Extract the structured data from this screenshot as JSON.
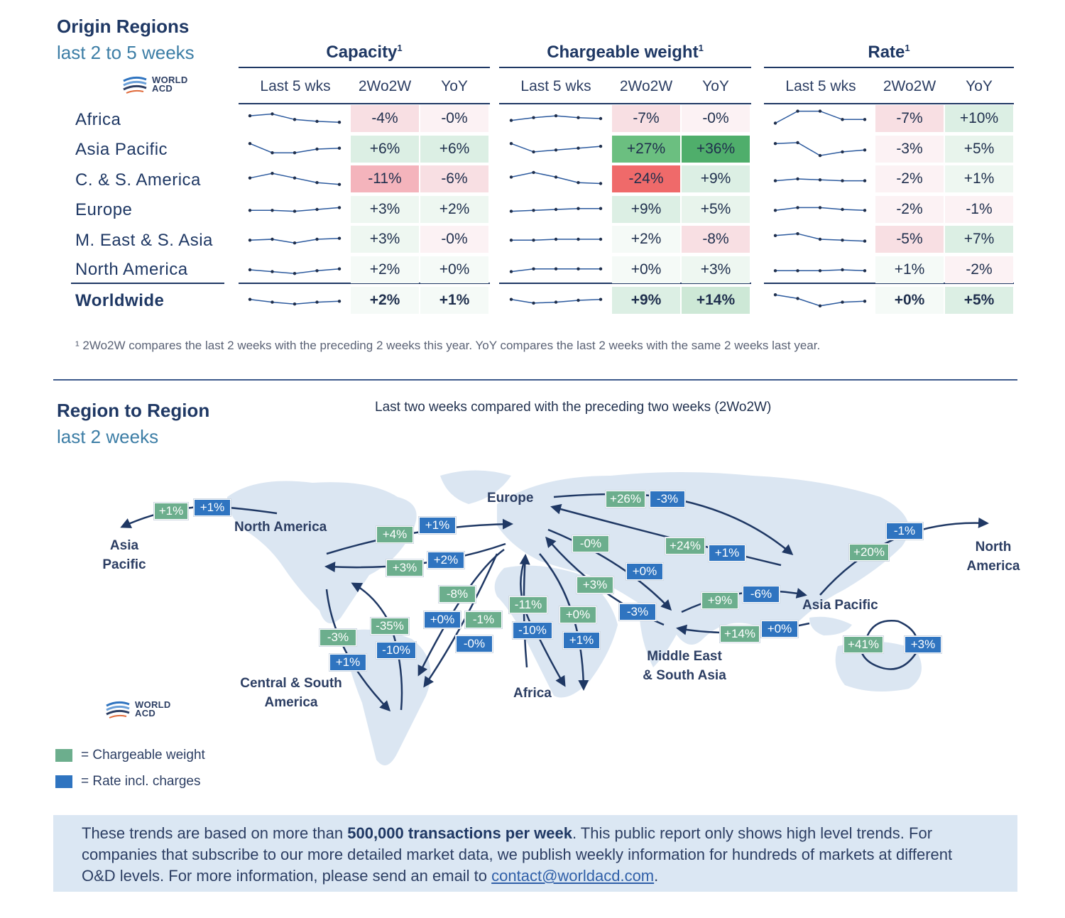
{
  "origin": {
    "title": "Origin Regions",
    "subtitle": "last 2 to 5 weeks",
    "logo": {
      "line1": "WORLD",
      "line2": "ACD"
    },
    "groups": [
      {
        "title": "Capacity",
        "sup": "1"
      },
      {
        "title": "Chargeable weight",
        "sup": "1"
      },
      {
        "title": "Rate",
        "sup": "1"
      }
    ],
    "col_heads": [
      "Last 5 wks",
      "2Wo2W",
      "YoY"
    ],
    "rows": [
      {
        "label": "Africa",
        "spark": [
          [
            0.35,
            0.25,
            0.55,
            0.65,
            0.7
          ],
          [
            0.6,
            0.45,
            0.35,
            0.45,
            0.5
          ],
          [
            0.75,
            0.1,
            0.1,
            0.55,
            0.55
          ]
        ],
        "cap": [
          "-4%",
          "-0%"
        ],
        "cw": [
          "-7%",
          "-0%"
        ],
        "rate": [
          "-7%",
          "+10%"
        ],
        "colors": [
          "#f8dfe3",
          "#fcf2f4",
          "#f8dfe3",
          "#fcf2f4",
          "#f8dfe3",
          "#dcefe4"
        ]
      },
      {
        "label": "Asia Pacific",
        "spark": [
          [
            0.2,
            0.7,
            0.7,
            0.5,
            0.45
          ],
          [
            0.2,
            0.65,
            0.55,
            0.45,
            0.35
          ],
          [
            0.2,
            0.15,
            0.85,
            0.65,
            0.55
          ]
        ],
        "cap": [
          "+6%",
          "+6%"
        ],
        "cw": [
          "+27%",
          "+36%"
        ],
        "rate": [
          "-3%",
          "+5%"
        ],
        "colors": [
          "#dcefe4",
          "#dcefe4",
          "#6bbf80",
          "#4fae6b",
          "#fcf2f4",
          "#e8f4ec"
        ]
      },
      {
        "label": "C. & S. America",
        "spark": [
          [
            0.45,
            0.2,
            0.45,
            0.7,
            0.8
          ],
          [
            0.4,
            0.15,
            0.4,
            0.7,
            0.75
          ],
          [
            0.6,
            0.5,
            0.55,
            0.6,
            0.6
          ]
        ],
        "cap": [
          "-11%",
          "-6%"
        ],
        "cw": [
          "-24%",
          "+9%"
        ],
        "rate": [
          "-2%",
          "+1%"
        ],
        "colors": [
          "#f4b4bc",
          "#f8dfe3",
          "#ef6a6a",
          "#dcefe4",
          "#fcf2f4",
          "#eef7f1"
        ]
      },
      {
        "label": "Europe",
        "spark": [
          [
            0.55,
            0.55,
            0.6,
            0.5,
            0.4
          ],
          [
            0.6,
            0.55,
            0.5,
            0.45,
            0.45
          ],
          [
            0.55,
            0.4,
            0.4,
            0.5,
            0.55
          ]
        ],
        "cap": [
          "+3%",
          "+2%"
        ],
        "cw": [
          "+9%",
          "+5%"
        ],
        "rate": [
          "-2%",
          "-1%"
        ],
        "colors": [
          "#eef7f1",
          "#eef7f1",
          "#dcefe4",
          "#e8f4ec",
          "#fcf2f4",
          "#fcf2f4"
        ]
      },
      {
        "label": "M. East & S. Asia",
        "spark": [
          [
            0.55,
            0.5,
            0.7,
            0.5,
            0.45
          ],
          [
            0.55,
            0.55,
            0.5,
            0.5,
            0.5
          ],
          [
            0.3,
            0.2,
            0.5,
            0.55,
            0.6
          ]
        ],
        "cap": [
          "+3%",
          "-0%"
        ],
        "cw": [
          "+2%",
          "-8%"
        ],
        "rate": [
          "-5%",
          "+7%"
        ],
        "colors": [
          "#eef7f1",
          "#fcf2f4",
          "#f5faf7",
          "#f8dfe3",
          "#f8dfe3",
          "#dcefe4"
        ]
      },
      {
        "label": "North America",
        "spark": [
          [
            0.5,
            0.6,
            0.7,
            0.55,
            0.45
          ],
          [
            0.6,
            0.45,
            0.45,
            0.45,
            0.45
          ],
          [
            0.55,
            0.55,
            0.55,
            0.5,
            0.55
          ]
        ],
        "cap": [
          "+2%",
          "+0%"
        ],
        "cw": [
          "+0%",
          "+3%"
        ],
        "rate": [
          "+1%",
          "-2%"
        ],
        "colors": [
          "#f5faf7",
          "#f5faf7",
          "#f5faf7",
          "#eef7f1",
          "#f5faf7",
          "#fcf2f4"
        ]
      },
      {
        "label": "Worldwide",
        "spark": [
          [
            0.45,
            0.6,
            0.7,
            0.6,
            0.55
          ],
          [
            0.45,
            0.65,
            0.6,
            0.5,
            0.45
          ],
          [
            0.2,
            0.4,
            0.8,
            0.6,
            0.55
          ]
        ],
        "cap": [
          "+2%",
          "+1%"
        ],
        "cw": [
          "+9%",
          "+14%"
        ],
        "rate": [
          "+0%",
          "+5%"
        ],
        "colors": [
          "#f5faf7",
          "#f5faf7",
          "#dcefe4",
          "#cde8d6",
          "#f5faf7",
          "#dcefe4"
        ]
      }
    ],
    "footnote": "¹ 2Wo2W compares the last 2 weeks with the preceding 2 weeks this year. YoY compares the last 2 weeks with the same 2 weeks last year."
  },
  "r2r": {
    "title": "Region to Region",
    "subtitle": "last 2 weeks",
    "map_title": "Last two weeks compared with the preceding two weeks (2Wo2W)",
    "labels": {
      "asia_pacific_w": [
        "Asia",
        "Pacific"
      ],
      "north_america": "North America",
      "europe": "Europe",
      "north_america_e": [
        "North",
        "America"
      ],
      "asia_pacific": "Asia Pacific",
      "csa": [
        "Central & South",
        "America"
      ],
      "africa": "Africa",
      "mesa": [
        "Middle East",
        "& South Asia"
      ]
    },
    "tags": {
      "t1": "+1%",
      "t2": "+1%",
      "t3": "+4%",
      "t4": "+1%",
      "t5": "+3%",
      "t6": "+2%",
      "t7": "+26%",
      "t8": "-3%",
      "t9": "-0%",
      "t10": "+24%",
      "t11": "+1%",
      "t12": "+0%",
      "t13": "+3%",
      "t14": "-3%",
      "t15": "-8%",
      "t16": "+0%",
      "t17": "-1%",
      "t18": "-0%",
      "t19": "-11%",
      "t20": "-10%",
      "t21": "+0%",
      "t22": "+1%",
      "t23": "-35%",
      "t24": "-10%",
      "t25": "-3%",
      "t26": "+1%",
      "t27": "+9%",
      "t28": "-6%",
      "t29": "+14%",
      "t30": "+0%",
      "t31": "+20%",
      "t32": "-1%",
      "t33": "+41%",
      "t34": "+3%"
    },
    "legend": [
      {
        "color": "#6cae8d",
        "text": "=  Chargeable weight"
      },
      {
        "color": "#2f74c0",
        "text": "=  Rate incl. charges"
      }
    ]
  },
  "info": {
    "pre": "These trends are based on more than ",
    "bold": "500,000 transactions per week",
    "post": ". This public report only shows high level trends. For companies that subscribe to our more detailed market data, we publish weekly information for hundreds of markets at different O&D levels. For more information, please send an email to ",
    "email": "contact@worldacd.com",
    "end": "."
  }
}
